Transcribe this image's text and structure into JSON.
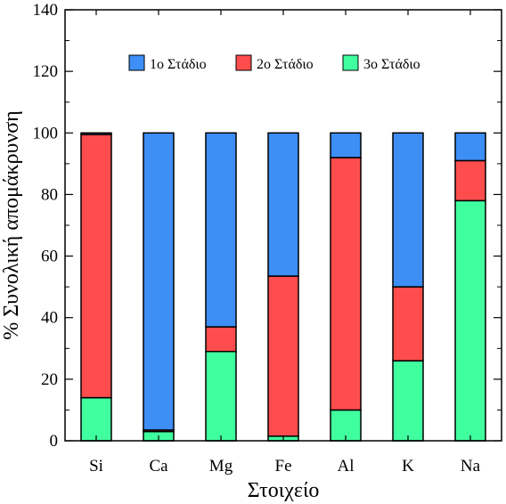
{
  "chart_data": {
    "type": "bar",
    "stacked": true,
    "title": "",
    "xlabel": "Στοιχείο",
    "ylabel": "% Συνολική απομάκρυνση",
    "ylim": [
      0,
      140
    ],
    "yticks": [
      0,
      20,
      40,
      60,
      80,
      100,
      120,
      140
    ],
    "grid": false,
    "legend_position": "top",
    "categories": [
      "Si",
      "Ca",
      "Mg",
      "Fe",
      "Al",
      "K",
      "Na"
    ],
    "series": [
      {
        "name": "3o Στάδιο",
        "color": "#40ff9f",
        "values": [
          14,
          3,
          29,
          1.5,
          10,
          26,
          78
        ]
      },
      {
        "name": "2o Στάδιο",
        "color": "#ff4d4d",
        "values": [
          85.5,
          0.5,
          8,
          52,
          82,
          24,
          13
        ]
      },
      {
        "name": "1o Στάδιο",
        "color": "#3d8ef5",
        "values": [
          0.5,
          96.5,
          63,
          46.5,
          8,
          50,
          9
        ]
      }
    ],
    "legend_order": [
      "1o Στάδιο",
      "2o Στάδιο",
      "3o Στάδιο"
    ]
  }
}
